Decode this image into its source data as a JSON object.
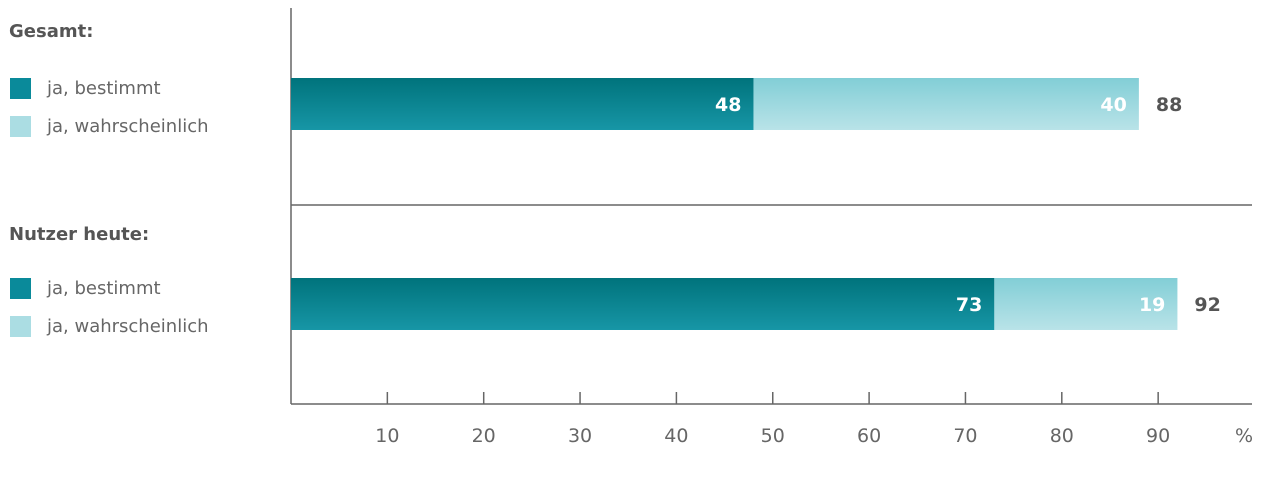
{
  "legend_groups": [
    {
      "title": "Gesamt:",
      "items": [
        {
          "label": "ja, bestimmt",
          "color": "#0a8a9a"
        },
        {
          "label": "ja, wahrscheinlich",
          "color": "#abdde3"
        }
      ]
    },
    {
      "title": "Nutzer heute:",
      "items": [
        {
          "label": "ja, bestimmt",
          "color": "#0a8a9a"
        },
        {
          "label": "ja, wahrscheinlich",
          "color": "#abdde3"
        }
      ]
    }
  ],
  "chart_data": {
    "type": "bar",
    "orientation": "horizontal",
    "stacked": true,
    "categories": [
      "Gesamt",
      "Nutzer heute"
    ],
    "series": [
      {
        "name": "ja, bestimmt",
        "values": [
          48,
          73
        ],
        "color": "#0a8a9a"
      },
      {
        "name": "ja, wahrscheinlich",
        "values": [
          40,
          19
        ],
        "color": "#abdde3"
      }
    ],
    "totals": [
      88,
      92
    ],
    "xlim": [
      0,
      100
    ],
    "xticks": [
      10,
      20,
      30,
      40,
      50,
      60,
      70,
      80,
      90
    ],
    "xunit": "%",
    "grid": false
  }
}
